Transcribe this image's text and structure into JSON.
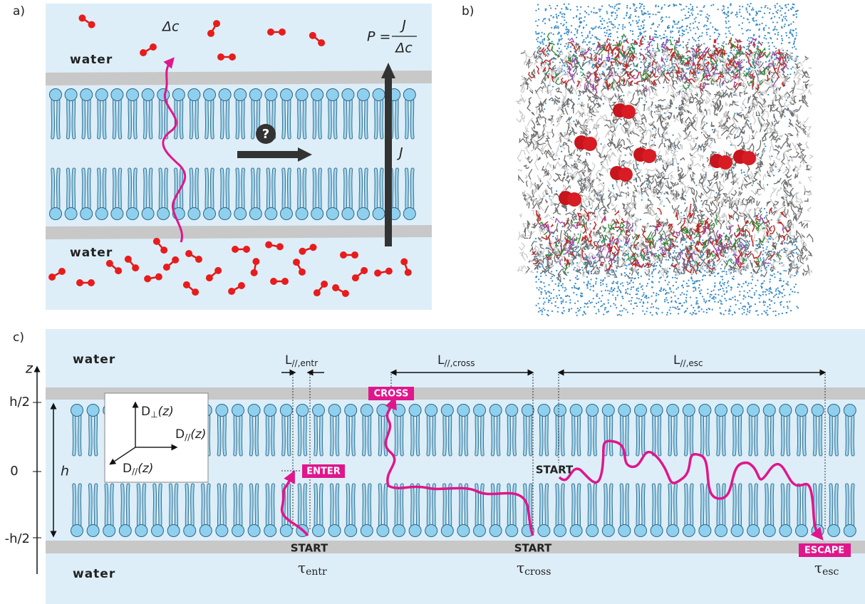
{
  "panel_a": {
    "label": "a)",
    "delta_c": "Δc",
    "water_top": "water",
    "water_bottom": "water",
    "permeability": {
      "lhs": "P =",
      "numerator": "J",
      "denominator": "Δc"
    },
    "flux": "J",
    "question": "?"
  },
  "panel_b": {
    "label": "b)"
  },
  "panel_c": {
    "label": "c)",
    "water_top": "water",
    "water_bottom": "water",
    "z_axis": {
      "label": "z",
      "ticks": [
        "h/2",
        "0",
        "-h/2"
      ]
    },
    "thickness": "h",
    "lengths": [
      {
        "main": "L",
        "sub": "//,entr"
      },
      {
        "main": "L",
        "sub": "//,cross"
      },
      {
        "main": "L",
        "sub": "//,esc"
      }
    ],
    "markers": {
      "enter": "ENTER",
      "cross": "CROSS",
      "escape": "ESCAPE"
    },
    "starts": [
      "START",
      "START",
      "START"
    ],
    "times": [
      {
        "main": "τ",
        "sub": "entr"
      },
      {
        "main": "τ",
        "sub": "cross"
      },
      {
        "main": "τ",
        "sub": "esc"
      }
    ],
    "diffusion": [
      {
        "main": "D",
        "sub": "⊥",
        "arg": "(z)"
      },
      {
        "main": "D",
        "sub": "//",
        "arg": "(z)"
      },
      {
        "main": "D",
        "sub": "//",
        "arg": "(z)"
      }
    ]
  }
}
